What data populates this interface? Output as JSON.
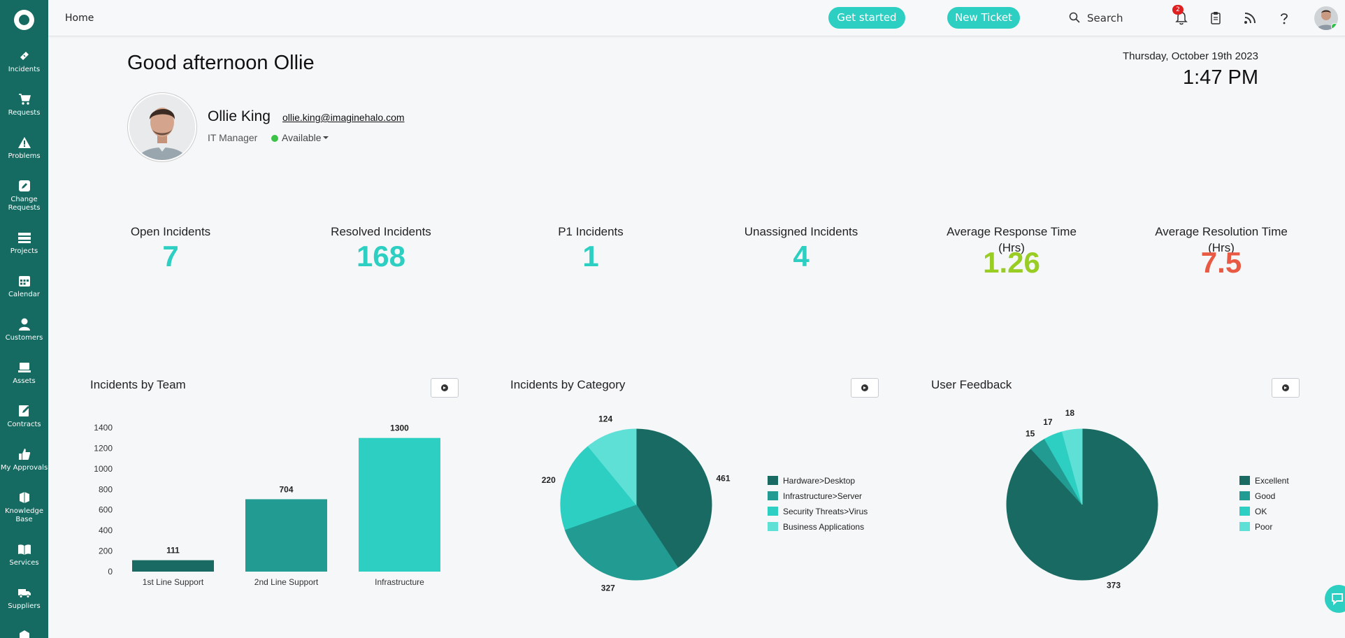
{
  "colors": {
    "sidebar": "#156a61",
    "accent": "#2ccfc2",
    "dark_teal": "#196a62",
    "mid_teal": "#229c92",
    "light_teal": "#2ccfc2",
    "pale_teal": "#5ee0d6",
    "green": "#9acd24",
    "red": "#e85a43"
  },
  "sidebar": {
    "items": [
      {
        "label": "Incidents",
        "icon": "ticket-icon"
      },
      {
        "label": "Requests",
        "icon": "cart-icon"
      },
      {
        "label": "Problems",
        "icon": "warning-icon"
      },
      {
        "label": "Change\nRequests",
        "icon": "pencil-icon"
      },
      {
        "label": "Projects",
        "icon": "projects-icon"
      },
      {
        "label": "Calendar",
        "icon": "calendar-icon"
      },
      {
        "label": "Customers",
        "icon": "customer-icon"
      },
      {
        "label": "Assets",
        "icon": "laptop-icon"
      },
      {
        "label": "Contracts",
        "icon": "contract-icon"
      },
      {
        "label": "My Approvals",
        "icon": "thumbs-up-icon"
      },
      {
        "label": "Knowledge\nBase",
        "icon": "knowledge-icon"
      },
      {
        "label": "Services",
        "icon": "book-icon"
      },
      {
        "label": "Suppliers",
        "icon": "truck-icon"
      }
    ]
  },
  "topbar": {
    "breadcrumb": "Home",
    "get_started": "Get started",
    "new_ticket": "New Ticket",
    "search_label": "Search",
    "notification_count": "2"
  },
  "greeting": {
    "text": "Good afternoon Ollie",
    "date": "Thursday, October 19th 2023",
    "time": "1:47 PM"
  },
  "profile": {
    "name": "Ollie King",
    "email": "ollie.king@imaginehalo.com",
    "role": "IT Manager",
    "status": "Available"
  },
  "kpis": [
    {
      "title": "Open Incidents",
      "value": "7",
      "color": "#2ccfc2"
    },
    {
      "title": "Resolved Incidents",
      "value": "168",
      "color": "#2ccfc2"
    },
    {
      "title": "P1 Incidents",
      "value": "1",
      "color": "#2ccfc2"
    },
    {
      "title": "Unassigned Incidents",
      "value": "4",
      "color": "#2ccfc2"
    },
    {
      "title": "Average Response Time (Hrs)",
      "value": "1.26",
      "color": "#9acd24"
    },
    {
      "title": "Average Resolution Time (Hrs)",
      "value": "7.5",
      "color": "#e85a43"
    }
  ],
  "chart_data": [
    {
      "type": "bar",
      "title": "Incidents by Team",
      "categories": [
        "1st Line Support",
        "2nd Line Support",
        "Infrastructure"
      ],
      "values": [
        111,
        704,
        1300
      ],
      "colors": [
        "#196a62",
        "#229c92",
        "#2ccfc2"
      ],
      "yticks": [
        0,
        200,
        400,
        600,
        800,
        1000,
        1200,
        1400
      ],
      "ylim": [
        0,
        1400
      ]
    },
    {
      "type": "pie",
      "title": "Incidents by Category",
      "labels": [
        "Hardware>Desktop",
        "Infrastructure>Server",
        "Security Threats>Virus",
        "Business Applications"
      ],
      "values": [
        461,
        327,
        220,
        124
      ],
      "colors": [
        "#196a62",
        "#229c92",
        "#2ccfc2",
        "#5ee0d6"
      ],
      "legend": "right"
    },
    {
      "type": "pie",
      "title": "User Feedback",
      "labels": [
        "Excellent",
        "Good",
        "OK",
        "Poor"
      ],
      "values": [
        373,
        15,
        17,
        18
      ],
      "colors": [
        "#196a62",
        "#229c92",
        "#2ccfc2",
        "#5ee0d6"
      ],
      "legend": "right"
    }
  ]
}
